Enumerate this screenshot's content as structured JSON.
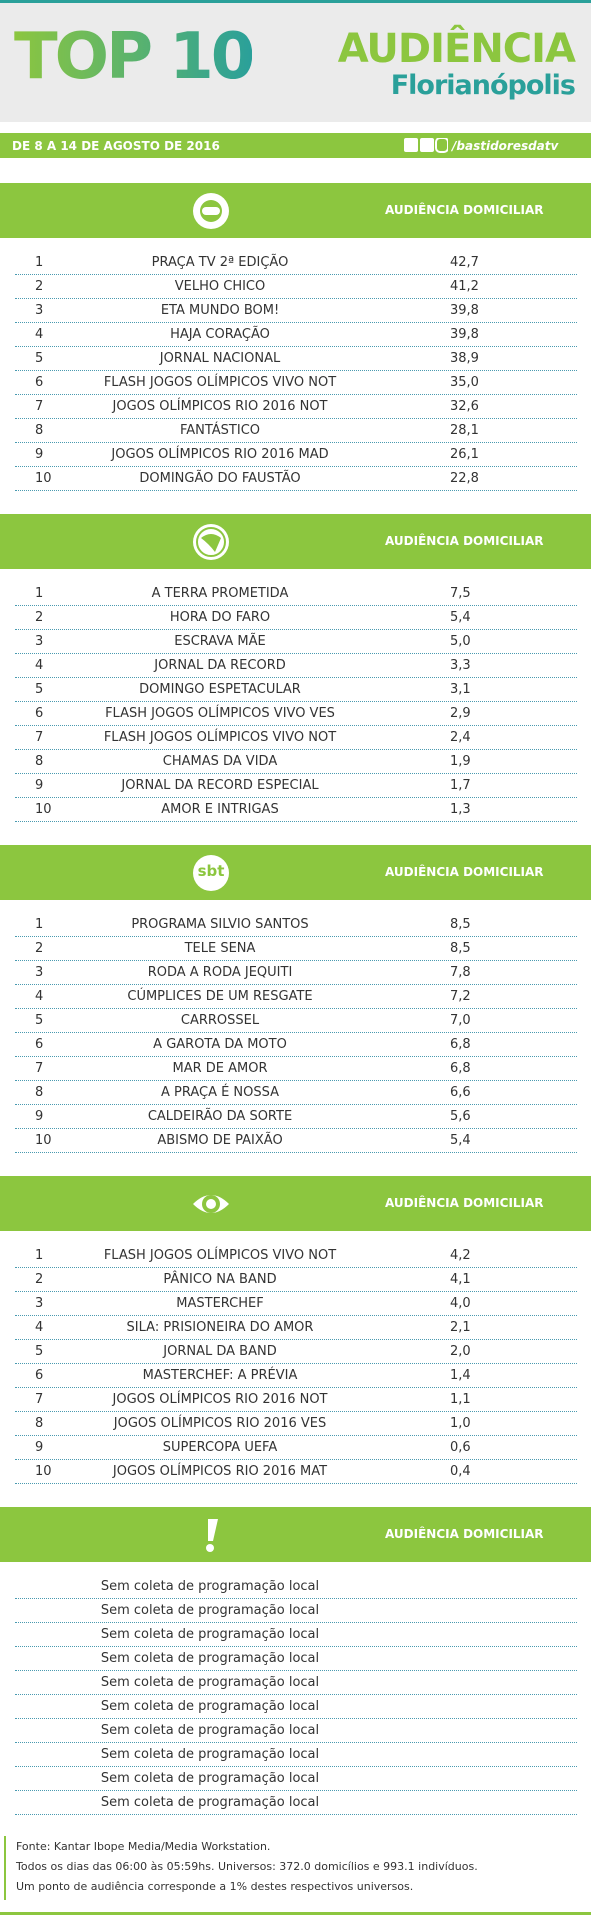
{
  "header": {
    "title": "TOP 10",
    "brand": "AUDIÊNCIA",
    "city": "Florianópolis",
    "period": "DE 8 A 14 DE AGOSTO DE 2016",
    "social": "/bastidoresdatv"
  },
  "sections": [
    {
      "logo": "globo",
      "column_label": "AUDIÊNCIA DOMICILIAR",
      "rows": [
        [
          1,
          "PRAÇA TV 2ª EDIÇÃO",
          "42,7"
        ],
        [
          2,
          "VELHO CHICO",
          "41,2"
        ],
        [
          3,
          "ETA MUNDO BOM!",
          "39,8"
        ],
        [
          4,
          "HAJA CORAÇÃO",
          "39,8"
        ],
        [
          5,
          "JORNAL NACIONAL",
          "38,9"
        ],
        [
          6,
          "FLASH JOGOS OLÍMPICOS VIVO NOT",
          "35,0"
        ],
        [
          7,
          "JOGOS OLÍMPICOS RIO 2016 NOT",
          "32,6"
        ],
        [
          8,
          "FANTÁSTICO",
          "28,1"
        ],
        [
          9,
          "JOGOS OLÍMPICOS RIO 2016 MAD",
          "26,1"
        ],
        [
          10,
          "DOMINGÃO DO FAUSTÃO",
          "22,8"
        ]
      ]
    },
    {
      "logo": "record",
      "column_label": "AUDIÊNCIA DOMICILIAR",
      "rows": [
        [
          1,
          "A TERRA PROMETIDA",
          "7,5"
        ],
        [
          2,
          "HORA DO FARO",
          "5,4"
        ],
        [
          3,
          "ESCRAVA MÃE",
          "5,0"
        ],
        [
          4,
          "JORNAL DA RECORD",
          "3,3"
        ],
        [
          5,
          "DOMINGO ESPETACULAR",
          "3,1"
        ],
        [
          6,
          "FLASH JOGOS OLÍMPICOS VIVO VES",
          "2,9"
        ],
        [
          7,
          "FLASH JOGOS OLÍMPICOS VIVO NOT",
          "2,4"
        ],
        [
          8,
          "CHAMAS DA VIDA",
          "1,9"
        ],
        [
          9,
          "JORNAL DA RECORD ESPECIAL",
          "1,7"
        ],
        [
          10,
          "AMOR E INTRIGAS",
          "1,3"
        ]
      ]
    },
    {
      "logo": "sbt",
      "logo_text": "sbt",
      "column_label": "AUDIÊNCIA DOMICILIAR",
      "rows": [
        [
          1,
          "PROGRAMA SILVIO SANTOS",
          "8,5"
        ],
        [
          2,
          "TELE SENA",
          "8,5"
        ],
        [
          3,
          "RODA A RODA JEQUITI",
          "7,8"
        ],
        [
          4,
          "CÚMPLICES DE UM RESGATE",
          "7,2"
        ],
        [
          5,
          "CARROSSEL",
          "7,0"
        ],
        [
          6,
          "A GAROTA DA MOTO",
          "6,8"
        ],
        [
          7,
          "MAR DE AMOR",
          "6,8"
        ],
        [
          8,
          "A PRAÇA É NOSSA",
          "6,6"
        ],
        [
          9,
          "CALDEIRÃO DA SORTE",
          "5,6"
        ],
        [
          10,
          "ABISMO DE PAIXÃO",
          "5,4"
        ]
      ]
    },
    {
      "logo": "band",
      "column_label": "AUDIÊNCIA DOMICILIAR",
      "rows": [
        [
          1,
          "FLASH JOGOS OLÍMPICOS VIVO NOT",
          "4,2"
        ],
        [
          2,
          "PÂNICO NA BAND",
          "4,1"
        ],
        [
          3,
          "MASTERCHEF",
          "4,0"
        ],
        [
          4,
          "SILA: PRISIONEIRA DO AMOR",
          "2,1"
        ],
        [
          5,
          "JORNAL DA BAND",
          "2,0"
        ],
        [
          6,
          "MASTERCHEF: A PRÉVIA",
          "1,4"
        ],
        [
          7,
          "JOGOS OLÍMPICOS RIO 2016 NOT",
          "1,1"
        ],
        [
          8,
          "JOGOS OLÍMPICOS RIO 2016 VES",
          "1,0"
        ],
        [
          9,
          "SUPERCOPA UEFA",
          "0,6"
        ],
        [
          10,
          "JOGOS OLÍMPICOS RIO 2016 MAT",
          "0,4"
        ]
      ]
    },
    {
      "logo": "alert",
      "column_label": "AUDIÊNCIA DOMICILIAR",
      "rows": [
        [
          "Sem coleta de programação local"
        ],
        [
          "Sem coleta de programação local"
        ],
        [
          "Sem coleta de programação local"
        ],
        [
          "Sem coleta de programação local"
        ],
        [
          "Sem coleta de programação local"
        ],
        [
          "Sem coleta de programação local"
        ],
        [
          "Sem coleta de programação local"
        ],
        [
          "Sem coleta de programação local"
        ],
        [
          "Sem coleta de programação local"
        ],
        [
          "Sem coleta de programação local"
        ]
      ]
    }
  ],
  "footer": [
    "Fonte: Kantar Ibope Media/Media Workstation.",
    "Todos os dias das 06:00 às 05:59hs. Universos: 372.0 domicílios e 993.1 indivíduos.",
    "Um ponto de audiência corresponde a 1% destes respectivos universos."
  ]
}
